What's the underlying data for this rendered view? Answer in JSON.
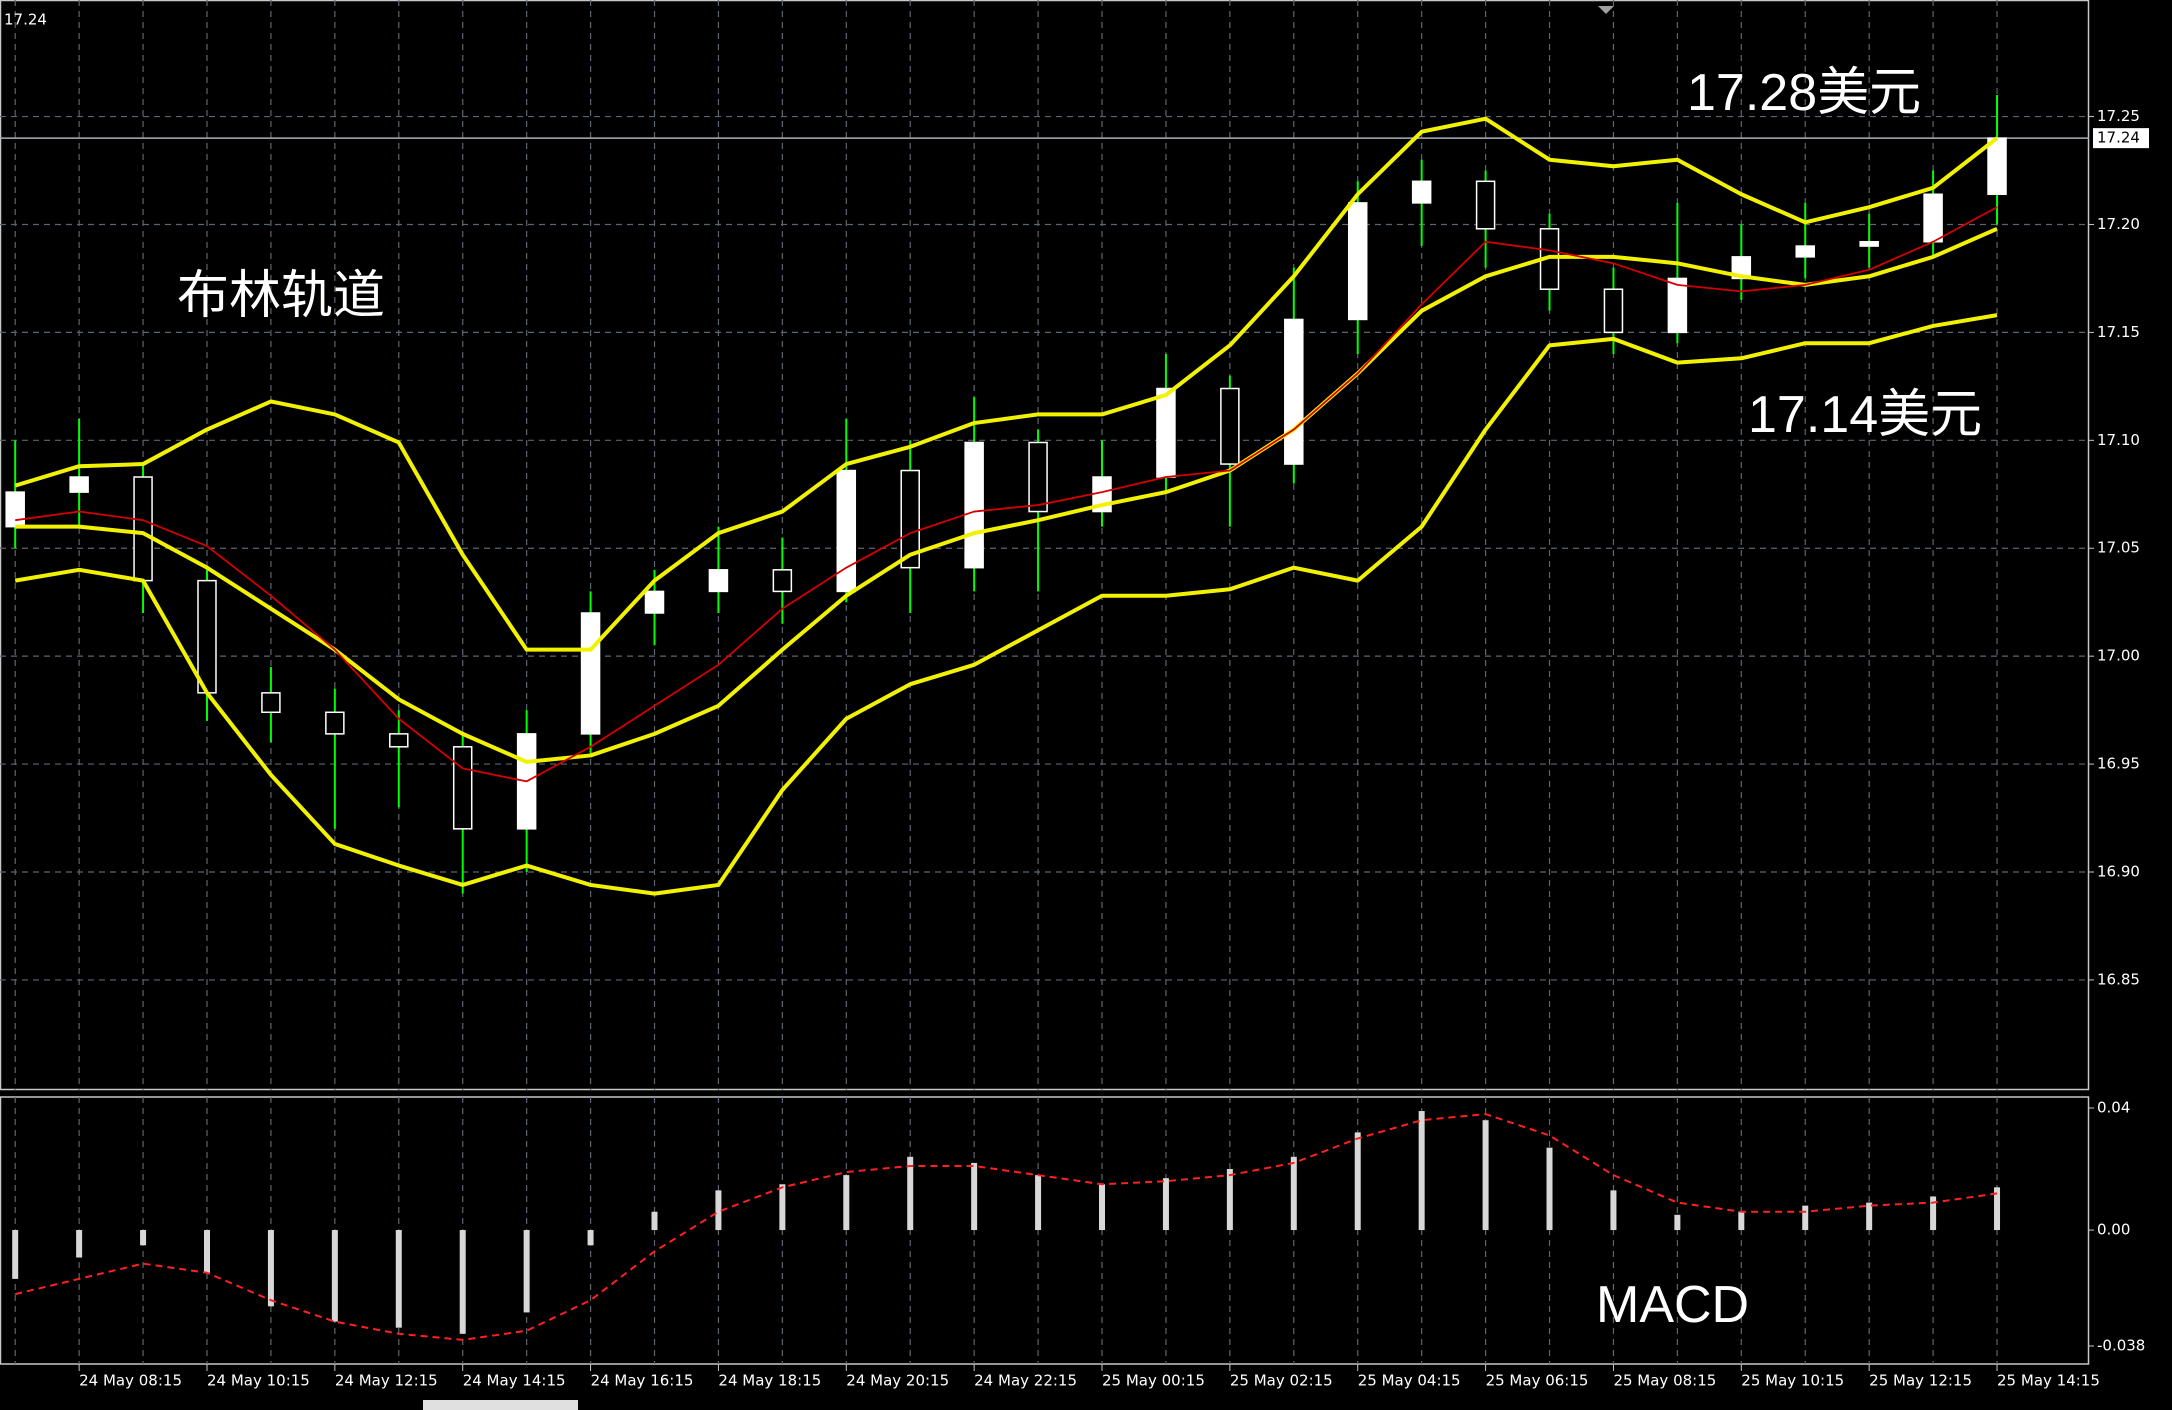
{
  "chart_data": [
    {
      "type": "candlestick",
      "categories": [
        null,
        "24 May 08:15",
        null,
        "24 May 10:15",
        null,
        "24 May 12:15",
        null,
        "24 May 14:15",
        null,
        "24 May 16:15",
        null,
        "24 May 18:15",
        null,
        "24 May 20:15",
        null,
        "24 May 22:15",
        null,
        "25 May 00:15",
        null,
        "25 May 02:15",
        null,
        "25 May 04:15",
        null,
        "25 May 06:15",
        null,
        "25 May 08:15",
        null,
        "25 May 10:15",
        null,
        "25 May 12:15",
        null,
        "25 May 14:15"
      ],
      "ohlc": [
        [
          17.06,
          17.1,
          17.05,
          17.076
        ],
        [
          17.076,
          17.11,
          17.06,
          17.083
        ],
        [
          17.083,
          17.09,
          17.02,
          17.035
        ],
        [
          17.035,
          17.04,
          16.97,
          16.983
        ],
        [
          16.983,
          16.995,
          16.96,
          16.974
        ],
        [
          16.974,
          16.985,
          16.92,
          16.964
        ],
        [
          16.964,
          16.975,
          16.93,
          16.958
        ],
        [
          16.958,
          16.965,
          16.89,
          16.92
        ],
        [
          16.92,
          16.975,
          16.9,
          16.964
        ],
        [
          16.964,
          17.03,
          16.955,
          17.02
        ],
        [
          17.02,
          17.04,
          17.005,
          17.03
        ],
        [
          17.03,
          17.06,
          17.02,
          17.04
        ],
        [
          17.04,
          17.055,
          17.015,
          17.03
        ],
        [
          17.03,
          17.11,
          17.025,
          17.086
        ],
        [
          17.086,
          17.1,
          17.02,
          17.041
        ],
        [
          17.041,
          17.12,
          17.03,
          17.099
        ],
        [
          17.099,
          17.105,
          17.03,
          17.067
        ],
        [
          17.067,
          17.1,
          17.06,
          17.083
        ],
        [
          17.083,
          17.14,
          17.075,
          17.124
        ],
        [
          17.124,
          17.13,
          17.06,
          17.089
        ],
        [
          17.089,
          17.18,
          17.08,
          17.156
        ],
        [
          17.156,
          17.22,
          17.14,
          17.21
        ],
        [
          17.21,
          17.23,
          17.19,
          17.22
        ],
        [
          17.22,
          17.225,
          17.18,
          17.198
        ],
        [
          17.198,
          17.205,
          17.16,
          17.17
        ],
        [
          17.17,
          17.18,
          17.14,
          17.15
        ],
        [
          17.15,
          17.21,
          17.145,
          17.175
        ],
        [
          17.175,
          17.2,
          17.165,
          17.185
        ],
        [
          17.185,
          17.21,
          17.175,
          17.19
        ],
        [
          17.19,
          17.205,
          17.18,
          17.192
        ],
        [
          17.192,
          17.225,
          17.185,
          17.214
        ],
        [
          17.214,
          17.26,
          17.2,
          17.24
        ]
      ],
      "up_color": "#ffffff",
      "down_color": "#000000",
      "wick_color": "#00ff00",
      "series": [
        {
          "color": "#f2f200",
          "values": [
            17.079,
            17.088,
            17.089,
            17.105,
            17.118,
            17.112,
            17.099,
            17.047,
            17.003,
            17.003,
            17.035,
            17.057,
            17.067,
            17.089,
            17.097,
            17.108,
            17.112,
            17.112,
            17.121,
            17.144,
            17.176,
            17.214,
            17.243,
            17.249,
            17.23,
            17.227,
            17.23,
            17.214,
            17.201,
            17.208,
            17.217,
            17.24
          ]
        },
        {
          "color": "#f2f200",
          "values": [
            17.06,
            17.06,
            17.057,
            17.041,
            17.022,
            17.003,
            16.98,
            16.964,
            16.951,
            16.954,
            16.964,
            16.977,
            17.003,
            17.028,
            17.047,
            17.057,
            17.063,
            17.07,
            17.076,
            17.086,
            17.105,
            17.131,
            17.16,
            17.176,
            17.185,
            17.185,
            17.182,
            17.176,
            17.172,
            17.176,
            17.185,
            17.198
          ]
        },
        {
          "color": "#f2f200",
          "values": [
            17.035,
            17.04,
            17.035,
            16.983,
            16.945,
            16.913,
            16.903,
            16.894,
            16.903,
            16.894,
            16.89,
            16.894,
            16.938,
            16.971,
            16.987,
            16.996,
            17.012,
            17.028,
            17.028,
            17.031,
            17.041,
            17.035,
            17.06,
            17.105,
            17.144,
            17.147,
            17.136,
            17.138,
            17.145,
            17.145,
            17.153,
            17.158
          ]
        },
        {
          "color": "#d40000",
          "values": [
            17.063,
            17.067,
            17.063,
            17.051,
            17.028,
            17.003,
            16.971,
            16.948,
            16.942,
            16.958,
            16.977,
            16.996,
            17.022,
            17.041,
            17.057,
            17.067,
            17.07,
            17.076,
            17.083,
            17.086,
            17.105,
            17.131,
            17.163,
            17.192,
            17.188,
            17.182,
            17.172,
            17.169,
            17.172,
            17.179,
            17.192,
            17.208
          ]
        }
      ],
      "ylim": [
        16.799,
        17.304
      ],
      "yticks": [
        16.85,
        {
          "value": 16.9,
          "label": "16.90"
        },
        16.95,
        {
          "value": 17,
          "label": "17.00"
        },
        17.05,
        {
          "value": 17.1,
          "label": "17.10"
        },
        17.15,
        {
          "value": 17.2,
          "label": "17.20"
        },
        17.25
      ],
      "grid": true,
      "current_price": 17.24,
      "annotations": [
        "17.28美元",
        "17.14美元",
        "布林轨道"
      ]
    },
    {
      "type": "macd",
      "title": "MACD",
      "series": [
        {
          "color": "#d8d8d8",
          "values": [
            -0.016,
            -0.009,
            -0.005,
            -0.014,
            -0.025,
            -0.03,
            -0.032,
            -0.034,
            -0.027,
            -0.005,
            0.006,
            0.013,
            0.015,
            0.018,
            0.024,
            0.022,
            0.018,
            0.015,
            0.017,
            0.02,
            0.024,
            0.032,
            0.039,
            0.036,
            0.027,
            0.013,
            0.005,
            0.006,
            0.008,
            0.009,
            0.011,
            0.014
          ]
        },
        {
          "color": "#ff2020",
          "values": [
            -0.021,
            -0.016,
            -0.011,
            -0.014,
            -0.023,
            -0.03,
            -0.034,
            -0.036,
            -0.033,
            -0.023,
            -0.007,
            0.006,
            0.014,
            0.019,
            0.021,
            0.021,
            0.018,
            0.015,
            0.016,
            0.018,
            0.022,
            0.03,
            0.036,
            0.038,
            0.031,
            0.018,
            0.009,
            0.006,
            0.006,
            0.008,
            0.009,
            0.012
          ]
        }
      ],
      "ylim": [
        -0.0439,
        0.0436
      ],
      "yticks": [
        -0.038,
        {
          "value": 0,
          "label": "0.00"
        },
        0.04
      ]
    }
  ]
}
